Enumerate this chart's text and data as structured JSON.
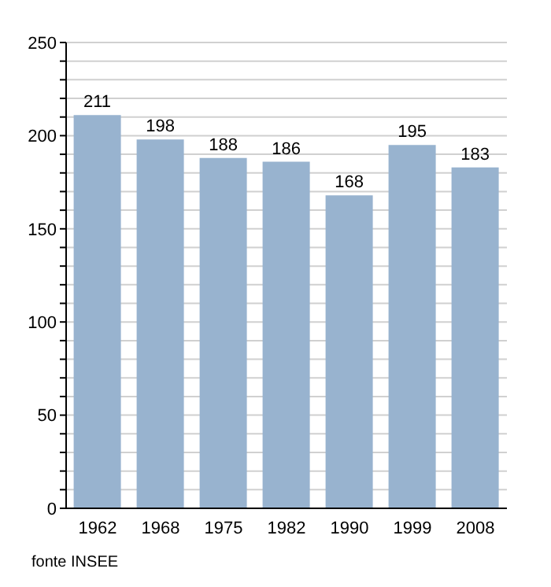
{
  "chart_data": {
    "type": "bar",
    "categories": [
      "1962",
      "1968",
      "1975",
      "1982",
      "1990",
      "1999",
      "2008"
    ],
    "values": [
      211,
      198,
      188,
      186,
      168,
      195,
      183
    ],
    "color": "#98b3cf",
    "ylim": [
      0,
      250
    ],
    "yticks": [
      0,
      {
        "value": 10,
        "label": null
      },
      {
        "value": 20,
        "label": null
      },
      {
        "value": 30,
        "label": null
      },
      {
        "value": 40,
        "label": null
      },
      50,
      {
        "value": 60,
        "label": null
      },
      {
        "value": 70,
        "label": null
      },
      {
        "value": 80,
        "label": null
      },
      {
        "value": 90,
        "label": null
      },
      100,
      {
        "value": 110,
        "label": null
      },
      {
        "value": 120,
        "label": null
      },
      {
        "value": 130,
        "label": null
      },
      {
        "value": 140,
        "label": null
      },
      150,
      {
        "value": 160,
        "label": null
      },
      {
        "value": 170,
        "label": null
      },
      {
        "value": 180,
        "label": null
      },
      {
        "value": 190,
        "label": null
      },
      200,
      {
        "value": 210,
        "label": null
      },
      {
        "value": 220,
        "label": null
      },
      {
        "value": 230,
        "label": null
      },
      {
        "value": 240,
        "label": null
      },
      250
    ],
    "grid": "y",
    "data_labels": true,
    "annotations": [
      "fonte INSEE"
    ]
  }
}
